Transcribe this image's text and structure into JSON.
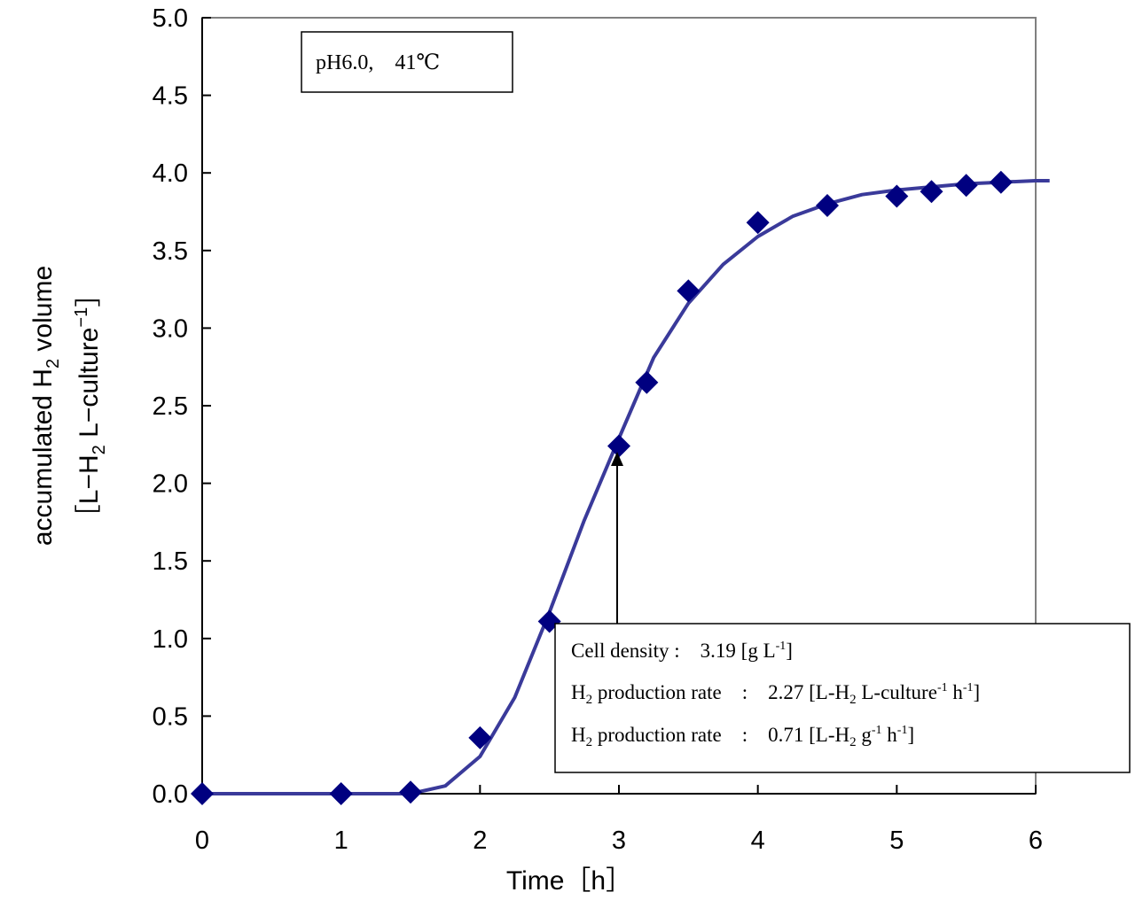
{
  "chart_data": {
    "type": "scatter",
    "xlabel": "Time［h］",
    "ylabel_line1": "accumulated H",
    "ylabel_line1_sub": "2",
    "ylabel_line1_end": " volume",
    "ylabel_line2_start": "［L−H",
    "ylabel_line2_sub": "2",
    "ylabel_line2_mid": " L−culture",
    "ylabel_line2_sup": "−1",
    "ylabel_line2_end": "］",
    "xlim": [
      0,
      6
    ],
    "ylim": [
      0,
      5
    ],
    "xticks": [
      "0",
      "1",
      "2",
      "3",
      "4",
      "5",
      "6"
    ],
    "yticks": [
      "0.0",
      "0.5",
      "1.0",
      "1.5",
      "2.0",
      "2.5",
      "3.0",
      "3.5",
      "4.0",
      "4.5",
      "5.0"
    ],
    "grid": false,
    "colors": {
      "marker": "#000080",
      "fit": "#3a3a9a",
      "frame": "#808080"
    },
    "series": [
      {
        "kind": "points",
        "x": [
          0,
          1.0,
          1.5,
          2.0,
          2.5,
          3.0,
          3.2,
          3.5,
          4.0,
          4.5,
          5.0,
          5.25,
          5.5,
          5.75
        ],
        "y": [
          0.0,
          0.0,
          0.01,
          0.36,
          1.11,
          2.24,
          2.65,
          3.24,
          3.68,
          3.79,
          3.85,
          3.88,
          3.92,
          3.94
        ]
      },
      {
        "kind": "fit-line",
        "x": [
          0,
          1.0,
          1.5,
          1.75,
          2.0,
          2.25,
          2.5,
          2.75,
          3.0,
          3.25,
          3.5,
          3.75,
          4.0,
          4.25,
          4.5,
          4.75,
          5.0,
          5.25,
          5.5,
          5.75,
          6.0,
          6.1
        ],
        "y": [
          0,
          0,
          0.0,
          0.05,
          0.24,
          0.62,
          1.17,
          1.76,
          2.29,
          2.81,
          3.16,
          3.41,
          3.59,
          3.72,
          3.8,
          3.86,
          3.89,
          3.91,
          3.93,
          3.94,
          3.95,
          3.95
        ]
      }
    ],
    "annotations": {
      "condition_box": "pH6.0,　41℃",
      "arrow_target": {
        "x": 3.0,
        "y": 2.2
      },
      "info_line1": "Cell density :　3.19 [g L",
      "info_line1_sup": "-1",
      "info_line1_end": "]",
      "info_line2_a": "H",
      "info_line2_sub": "2",
      "info_line2_b": " production rate　:　2.27 [L-H",
      "info_line2_sub2": "2",
      "info_line2_c": " L-culture",
      "info_line2_sup": "-1",
      "info_line2_d": " h",
      "info_line2_sup2": "-1",
      "info_line2_end": "]",
      "info_line3_a": "H",
      "info_line3_sub": "2",
      "info_line3_b": " production rate　:　0.71 [L-H",
      "info_line3_sub2": "2",
      "info_line3_c": " g",
      "info_line3_sup": "-1",
      "info_line3_d": " h",
      "info_line3_sup2": "-1",
      "info_line3_end": "]"
    }
  }
}
